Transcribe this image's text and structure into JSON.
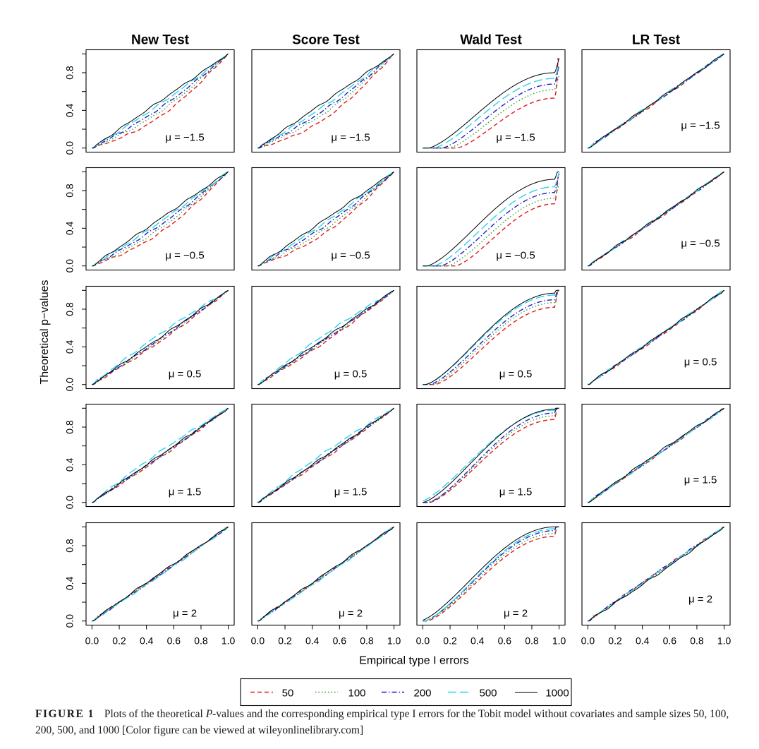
{
  "chart_data": {
    "type": "line",
    "layout": "5 rows x 4 columns small multiples",
    "columns": [
      "New Test",
      "Score Test",
      "Wald Test",
      "LR Test"
    ],
    "rows": [
      "μ = −1.5",
      "μ = −0.5",
      "μ = 0.5",
      "μ = 1.5",
      "μ = 2"
    ],
    "xlabel": "Empirical type I errors",
    "ylabel": "Theoretical p−values",
    "x_ticks": [
      "0.0",
      "0.2",
      "0.4",
      "0.6",
      "0.8",
      "1.0"
    ],
    "y_ticks": [
      "0.0",
      "0.4",
      "0.8"
    ],
    "xlim": [
      0,
      1
    ],
    "ylim": [
      0,
      1
    ],
    "grid": false,
    "legend_position": "bottom-center",
    "series": [
      {
        "name": "50",
        "color": "#e41a1c",
        "dash": "dashed"
      },
      {
        "name": "100",
        "color": "#33a02c",
        "dash": "dotted"
      },
      {
        "name": "200",
        "color": "#1f1fcf",
        "dash": "dot-dash"
      },
      {
        "name": "500",
        "color": "#29d4e6",
        "dash": "long-dash"
      },
      {
        "name": "1000",
        "color": "#000000",
        "dash": "solid"
      }
    ],
    "panels": [
      {
        "col": 0,
        "row": 0,
        "label": "μ = −1.5",
        "lag": [
          0.18,
          0.13,
          0.09,
          0.04,
          0.0
        ],
        "a": [
          0.72,
          0.55,
          0.45,
          0.35,
          0.25
        ]
      },
      {
        "col": 1,
        "row": 0,
        "label": "μ = −1.5",
        "lag": [
          0.2,
          0.14,
          0.1,
          0.05,
          0.0
        ],
        "a": [
          0.68,
          0.52,
          0.42,
          0.33,
          0.25
        ]
      },
      {
        "col": 2,
        "row": 0,
        "label": "μ = −1.5",
        "wald": true,
        "lag": [
          0.25,
          0.19,
          0.14,
          0.08,
          0.04
        ],
        "cap": [
          0.53,
          0.62,
          0.68,
          0.74,
          0.8
        ]
      },
      {
        "col": 3,
        "row": 0,
        "label": "μ = −1.5",
        "lag": [
          0.02,
          0.01,
          0.01,
          0.0,
          0.0
        ],
        "a": [
          0.1,
          0.1,
          0.1,
          0.1,
          0.1
        ]
      },
      {
        "col": 0,
        "row": 1,
        "label": "μ = −0.5",
        "lag": [
          0.16,
          0.12,
          0.08,
          0.04,
          0.0
        ],
        "a": [
          0.72,
          0.55,
          0.45,
          0.35,
          0.25
        ]
      },
      {
        "col": 1,
        "row": 1,
        "label": "μ = −0.5",
        "lag": [
          0.16,
          0.12,
          0.08,
          0.04,
          0.0
        ],
        "a": [
          0.7,
          0.55,
          0.45,
          0.35,
          0.25
        ]
      },
      {
        "col": 2,
        "row": 1,
        "label": "μ = −0.5",
        "wald": true,
        "lag": [
          0.24,
          0.18,
          0.13,
          0.08,
          0.03
        ],
        "cap": [
          0.66,
          0.72,
          0.78,
          0.84,
          0.92
        ]
      },
      {
        "col": 3,
        "row": 1,
        "label": "μ = −0.5",
        "lag": [
          0.02,
          0.01,
          0.01,
          0.0,
          0.0
        ],
        "a": [
          0.1,
          0.1,
          0.1,
          0.1,
          0.1
        ]
      },
      {
        "col": 0,
        "row": 2,
        "label": "μ = 0.5",
        "lag": [
          0.05,
          0.03,
          0.02,
          -0.05,
          0.0
        ],
        "a": [
          0.5,
          0.4,
          0.4,
          0.3,
          0.2
        ]
      },
      {
        "col": 1,
        "row": 2,
        "label": "μ = 0.5",
        "lag": [
          0.05,
          0.03,
          0.02,
          -0.05,
          0.0
        ],
        "a": [
          0.5,
          0.4,
          0.4,
          0.3,
          0.2
        ]
      },
      {
        "col": 2,
        "row": 2,
        "label": "μ = 0.5",
        "wald": true,
        "lag": [
          0.09,
          0.07,
          0.05,
          0.02,
          0.02
        ],
        "cap": [
          0.82,
          0.87,
          0.9,
          0.95,
          0.97
        ]
      },
      {
        "col": 3,
        "row": 2,
        "label": "μ = 0.5",
        "lag": [
          0.02,
          0.01,
          0.01,
          0.0,
          0.0
        ],
        "a": [
          0.1,
          0.1,
          0.1,
          0.1,
          0.1
        ]
      },
      {
        "col": 0,
        "row": 3,
        "label": "μ = 1.5",
        "lag": [
          0.03,
          0.02,
          0.01,
          -0.05,
          0.0
        ],
        "a": [
          0.5,
          0.4,
          0.4,
          0.3,
          0.2
        ]
      },
      {
        "col": 1,
        "row": 3,
        "label": "μ = 1.5",
        "lag": [
          0.03,
          0.02,
          0.01,
          -0.05,
          0.0
        ],
        "a": [
          0.5,
          0.4,
          0.4,
          0.3,
          0.2
        ]
      },
      {
        "col": 2,
        "row": 3,
        "label": "μ = 1.5",
        "wald": true,
        "lag": [
          0.05,
          0.04,
          0.04,
          -0.03,
          0.0
        ],
        "cap": [
          0.88,
          0.92,
          0.95,
          0.98,
          0.99
        ]
      },
      {
        "col": 3,
        "row": 3,
        "label": "μ = 1.5",
        "lag": [
          0.01,
          0.01,
          0.0,
          0.0,
          -0.02
        ],
        "a": [
          0.1,
          0.1,
          0.1,
          0.1,
          0.1
        ]
      },
      {
        "col": 0,
        "row": 4,
        "label": "μ = 2",
        "lag": [
          0.0,
          0.01,
          0.01,
          0.02,
          -0.01
        ],
        "a": [
          0.3,
          0.3,
          0.3,
          0.3,
          0.3
        ]
      },
      {
        "col": 1,
        "row": 4,
        "label": "μ = 2",
        "lag": [
          0.0,
          0.01,
          0.01,
          0.02,
          -0.01
        ],
        "a": [
          0.3,
          0.3,
          0.3,
          0.3,
          0.3
        ]
      },
      {
        "col": 2,
        "row": 4,
        "label": "μ = 2",
        "wald": true,
        "lag": [
          0.03,
          0.02,
          0.01,
          0.01,
          -0.02
        ],
        "cap": [
          0.9,
          0.93,
          0.96,
          0.98,
          1.0
        ]
      },
      {
        "col": 3,
        "row": 4,
        "label": "μ = 2",
        "lag": [
          -0.01,
          0.0,
          -0.01,
          0.0,
          0.02
        ],
        "a": [
          0.3,
          0.3,
          0.3,
          0.3,
          0.3
        ]
      }
    ]
  },
  "caption": {
    "label": "FIGURE 1",
    "text_1": "Plots of the theoretical ",
    "text_pv": "P",
    "text_2": "-values and the corresponding empirical type I errors for the Tobit model without covariates and sample sizes 50, 100, 200, 500, and 1000 [Color figure can be viewed at wileyonlinelibrary.com]"
  }
}
